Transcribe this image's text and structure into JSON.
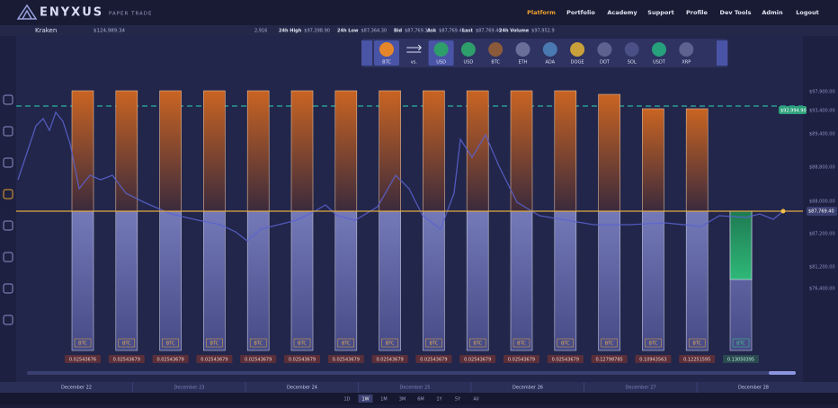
{
  "header": {
    "brand": "ENYXUS",
    "tagline": "PAPER TRADE",
    "nav": [
      "Platform",
      "Portfolio",
      "Academy",
      "Support",
      "Profile",
      "Dev Tools",
      "Admin",
      "Logout"
    ]
  },
  "toolbar": {
    "exchange": "Kraken",
    "balance": "$124,989.34",
    "prefix": "2,916",
    "stats": [
      {
        "label": "24h High",
        "value": "$97,398.90"
      },
      {
        "label": "24h Low",
        "value": "$87,364.30"
      },
      {
        "label": "Bid",
        "value": "$87,769.30"
      },
      {
        "label": "Ask",
        "value": "$87,769.40"
      },
      {
        "label": "Last",
        "value": "$87,769.40"
      },
      {
        "label": "24h Volume",
        "value": "$97,952.9"
      }
    ]
  },
  "pair_selector": {
    "base": "BTC",
    "vs": "vs.",
    "quote": "USD",
    "coins": [
      "USD",
      "BTC",
      "ETH",
      "ADA",
      "DOGE",
      "DOT",
      "SOL",
      "USDT",
      "XRP"
    ]
  },
  "price_axis": {
    "labels": [
      "$97,900.00",
      "$93,400.00",
      "$89,400.00",
      "$88,800.00",
      "$88,000.00",
      "$87,200.00",
      "$81,200.00",
      "$76,400.00"
    ],
    "target": "$92,994.90",
    "current": "$87,769.40"
  },
  "columns": [
    {
      "asset": "BTC",
      "amount": "0.02543676"
    },
    {
      "asset": "BTC",
      "amount": "0.02543679"
    },
    {
      "asset": "BTC",
      "amount": "0.02543679"
    },
    {
      "asset": "BTC",
      "amount": "0.02543679"
    },
    {
      "asset": "BTC",
      "amount": "0.02543679"
    },
    {
      "asset": "BTC",
      "amount": "0.02543679"
    },
    {
      "asset": "BTC",
      "amount": "0.02543679"
    },
    {
      "asset": "BTC",
      "amount": "0.02543679"
    },
    {
      "asset": "BTC",
      "amount": "0.02543679"
    },
    {
      "asset": "BTC",
      "amount": "0.02543679"
    },
    {
      "asset": "BTC",
      "amount": "0.02543679"
    },
    {
      "asset": "BTC",
      "amount": "0.02543679"
    },
    {
      "asset": "BTC",
      "amount": "0.12798785"
    },
    {
      "asset": "BTC",
      "amount": "0.10943563"
    },
    {
      "asset": "BTC",
      "amount": "0.12251595"
    },
    {
      "asset": "BTC",
      "amount": "0.13050395"
    }
  ],
  "dates": [
    "December 22",
    "December 23",
    "December 24",
    "December 25",
    "December 26",
    "December 27",
    "December 28"
  ],
  "timeframes": [
    "1D",
    "1W",
    "1M",
    "3M",
    "6M",
    "1Y",
    "5Y",
    "All"
  ]
}
